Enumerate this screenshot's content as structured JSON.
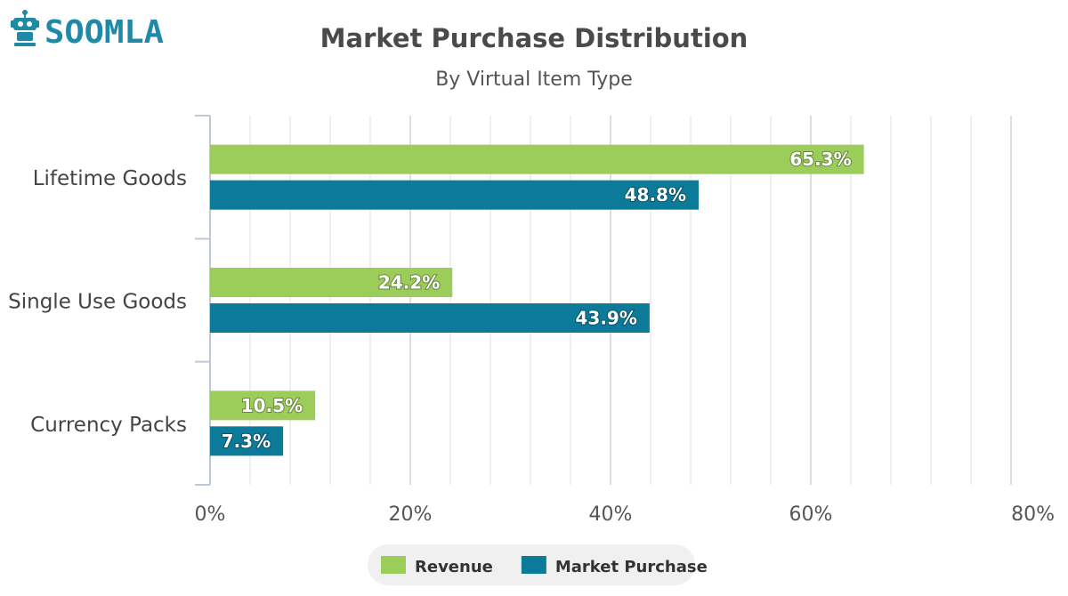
{
  "logo": {
    "text": "SOOMLA",
    "color": "#1f8aa8",
    "icon": "robot-icon"
  },
  "chart_data": {
    "type": "bar",
    "orientation": "horizontal",
    "title": "Market Purchase Distribution",
    "subtitle": "By Virtual Item Type",
    "categories": [
      "Lifetime Goods",
      "Single Use Goods",
      "Currency Packs"
    ],
    "series": [
      {
        "name": "Revenue",
        "color": "#9ccc5a",
        "values": [
          65.3,
          24.2,
          10.5
        ],
        "labels": [
          "65.3%",
          "24.2%",
          "10.5%"
        ]
      },
      {
        "name": "Market Purchase",
        "color": "#0c7a99",
        "values": [
          48.8,
          43.9,
          7.3
        ],
        "labels": [
          "48.8%",
          "43.9%",
          "7.3%"
        ]
      }
    ],
    "xlim": [
      0,
      80
    ],
    "xticks": [
      0,
      20,
      40,
      60,
      80
    ],
    "xtick_labels": [
      "0%",
      "20%",
      "40%",
      "60%",
      "80%"
    ],
    "minor_grid_step": 4,
    "grid": true,
    "legend": "bottom-center"
  }
}
